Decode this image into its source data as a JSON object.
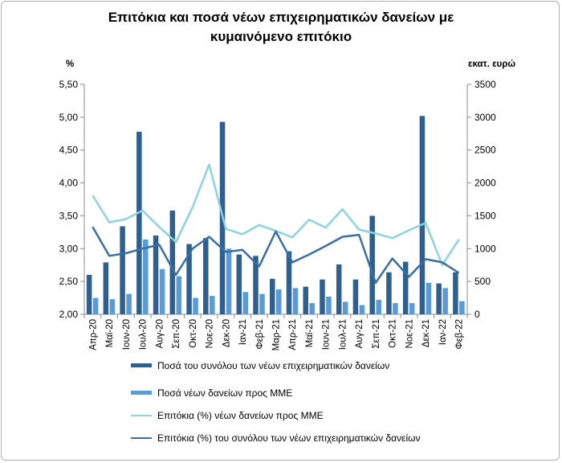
{
  "title_line1": "Επιτόκια και ποσά νέων επιχειρηματικών δανείων με",
  "title_line2": "κυμαινόμενο επιτόκιο",
  "left_unit": "%",
  "right_unit": "εκατ. ευρώ",
  "colors": {
    "total_amount_bar": "#2f5f8f",
    "sme_amount_bar": "#5b9bd5",
    "sme_rate_line": "#8dd3df",
    "total_rate_line": "#3a6ea5"
  },
  "chart_data": {
    "type": "bar",
    "combo": "bar-line",
    "categories": [
      "Απρ-20",
      "Μαϊ-20",
      "Ιουν-20",
      "Ιουλ-20",
      "Αυγ-20",
      "Σεπ-20",
      "Οκτ-20",
      "Νοε-20",
      "Δεκ-20",
      "Ιαν-21",
      "Φεβ-21",
      "Μαρ-21",
      "Απρ-21",
      "Μαϊ-21",
      "Ιουν-21",
      "Ιουλ-21",
      "Αυγ-21",
      "Σεπ-21",
      "Οκτ-21",
      "Νοε-21",
      "Δεκ-21",
      "Ιαν-22",
      "Φεβ-22"
    ],
    "series": [
      {
        "name": "Ποσά του συνόλου των νέων επιχειρηματικών δανείων",
        "type": "bar",
        "axis": "right",
        "values": [
          600,
          790,
          1340,
          2780,
          1200,
          1580,
          1070,
          1160,
          2930,
          910,
          890,
          540,
          960,
          420,
          530,
          760,
          530,
          1500,
          640,
          800,
          3020,
          470,
          640
        ]
      },
      {
        "name": "Ποσά νέων δανείων προς ΜΜΕ",
        "type": "bar",
        "axis": "right",
        "values": [
          250,
          230,
          310,
          1140,
          690,
          580,
          250,
          280,
          1000,
          340,
          310,
          380,
          400,
          170,
          270,
          190,
          140,
          220,
          170,
          170,
          480,
          400,
          200
        ]
      },
      {
        "name": "Επιτόκια (%) νέων δανείων προς ΜΜΕ",
        "type": "line",
        "axis": "left",
        "values": [
          3.81,
          3.4,
          3.45,
          3.58,
          3.33,
          3.1,
          3.63,
          4.28,
          3.3,
          3.22,
          3.36,
          3.27,
          3.17,
          3.44,
          3.32,
          3.6,
          3.29,
          3.23,
          3.16,
          3.28,
          3.39,
          2.75,
          3.14
        ]
      },
      {
        "name": "Επιτόκια (%) του συνόλου των νέων επιχειρηματικών δανείων",
        "type": "line",
        "axis": "left",
        "values": [
          3.33,
          2.89,
          2.93,
          3.0,
          3.06,
          2.6,
          3.0,
          3.18,
          2.95,
          2.98,
          2.73,
          3.26,
          2.79,
          2.91,
          3.04,
          3.18,
          3.21,
          2.48,
          2.85,
          2.57,
          2.84,
          2.79,
          2.63
        ]
      }
    ],
    "yleft": {
      "min": 2.0,
      "max": 5.5,
      "step": 0.5,
      "ticks": [
        "2,00",
        "2,50",
        "3,00",
        "3,50",
        "4,00",
        "4,50",
        "5,00",
        "5,50"
      ]
    },
    "yright": {
      "min": 0,
      "max": 3500,
      "step": 500,
      "ticks": [
        "0",
        "500",
        "1000",
        "1500",
        "2000",
        "2500",
        "3000",
        "3500"
      ]
    },
    "legend_position": "bottom",
    "grid": false
  }
}
